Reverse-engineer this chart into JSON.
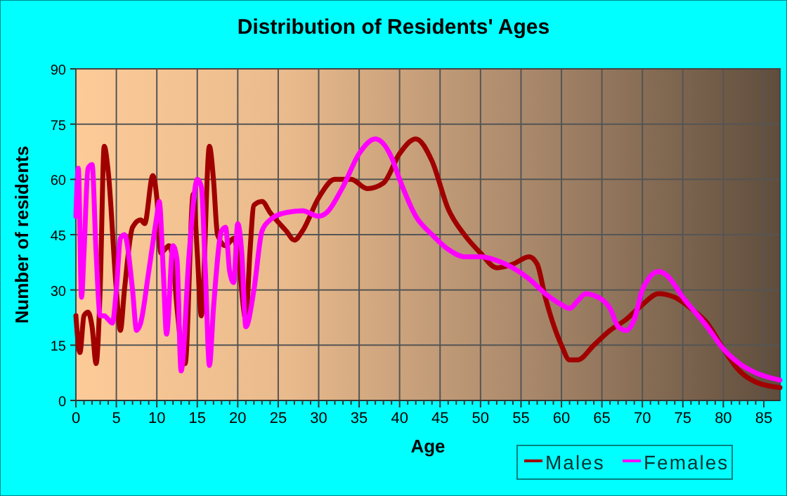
{
  "chart_data": {
    "type": "line",
    "title": "Distribution of Residents' Ages",
    "xlabel": "Age",
    "ylabel": "Number of residents",
    "xlim": [
      0,
      87
    ],
    "xticks": [
      0,
      5,
      10,
      15,
      20,
      25,
      30,
      35,
      40,
      45,
      50,
      55,
      60,
      65,
      70,
      75,
      80,
      85
    ],
    "ylim": [
      0,
      90
    ],
    "yticks": [
      0,
      15,
      30,
      45,
      60,
      75,
      90
    ],
    "grid": true,
    "legend": "bottom right",
    "marker": "none",
    "line_style": "solid",
    "series": [
      {
        "name": "Males",
        "color": "#a00000",
        "x": [
          0,
          0.5,
          1,
          1.5,
          2,
          2.5,
          3,
          3.5,
          4,
          5,
          5.5,
          6,
          7,
          8,
          8.5,
          9.5,
          10,
          10.5,
          11,
          11.5,
          12,
          12.5,
          13.5,
          14.5,
          15,
          15.5,
          16.5,
          17,
          17.5,
          18.5,
          19.5,
          20,
          21,
          21.5,
          22,
          23,
          24,
          26,
          27,
          28,
          30,
          32,
          34,
          36,
          38,
          40,
          42,
          44,
          46,
          48,
          50,
          52,
          54,
          56,
          57,
          58,
          60,
          61,
          62,
          64,
          66,
          68,
          70,
          72,
          74,
          76,
          78,
          80,
          82,
          84,
          87
        ],
        "values": [
          23,
          13,
          23,
          24,
          20,
          10,
          30,
          69,
          62,
          30,
          19,
          30,
          47,
          49,
          48,
          61,
          55,
          40,
          41,
          42,
          38,
          25,
          10,
          56,
          40,
          23,
          69,
          60,
          45,
          42,
          44,
          40,
          22,
          40,
          53,
          54,
          51,
          46,
          43.5,
          46,
          55,
          60,
          60,
          57.5,
          59,
          67,
          71,
          65,
          52,
          45,
          40,
          36,
          37,
          39,
          37,
          28,
          15,
          11,
          11,
          15,
          19,
          22,
          26,
          29,
          28,
          25,
          21,
          14,
          8,
          5,
          3.5
        ]
      },
      {
        "name": "Females",
        "color": "#ff00ff",
        "x": [
          0,
          0.3,
          0.7,
          1,
          1.5,
          2,
          2.5,
          3,
          3.5,
          4,
          4.5,
          5,
          5.5,
          6,
          7,
          7.5,
          8,
          9,
          10,
          10.3,
          10.8,
          11.2,
          12,
          12.5,
          13,
          14,
          15,
          15.5,
          16,
          16.5,
          17,
          18,
          18.5,
          19,
          19.5,
          20,
          20.5,
          21,
          22,
          23,
          24,
          26,
          28,
          30,
          31,
          33,
          35,
          37,
          39,
          40,
          42,
          44,
          46,
          48,
          50,
          52,
          54,
          56,
          58,
          60,
          61,
          62,
          63,
          64,
          66,
          67,
          68,
          69,
          70,
          72,
          73,
          75,
          78,
          80,
          82,
          84,
          87
        ],
        "values": [
          50,
          63,
          28,
          40,
          63,
          64,
          40,
          23,
          23,
          22,
          21,
          30,
          44,
          45,
          30,
          19,
          21,
          35,
          50,
          54,
          35,
          18,
          42,
          38,
          8,
          40,
          60,
          58,
          35,
          9.5,
          25,
          46,
          47,
          35,
          32,
          48,
          40,
          20,
          30,
          46,
          49,
          51,
          51.5,
          50,
          51,
          58,
          67,
          71,
          66,
          60,
          50,
          45,
          41,
          39,
          39,
          38,
          36,
          33,
          29,
          26,
          25,
          27,
          29,
          28.5,
          25,
          20,
          19,
          22,
          30,
          35,
          34,
          28,
          20,
          14,
          10,
          7.5,
          5.5
        ]
      }
    ]
  }
}
